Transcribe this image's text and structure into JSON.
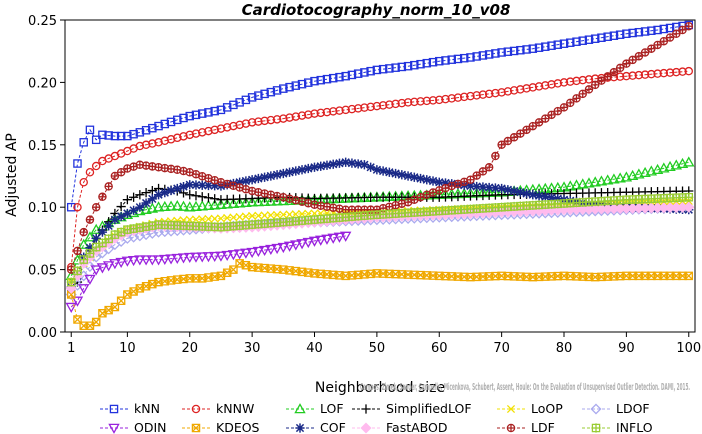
{
  "chart_data": {
    "type": "line",
    "title": "Cardiotocography_norm_10_v08",
    "xlabel": "Neighborhood size",
    "ylabel": "Adjusted AP",
    "xlim": [
      0,
      101
    ],
    "ylim": [
      0,
      0.25
    ],
    "xticks": [
      1,
      10,
      20,
      30,
      40,
      50,
      60,
      70,
      80,
      90,
      100
    ],
    "yticks": [
      0.0,
      0.05,
      0.1,
      0.15,
      0.2,
      0.25
    ],
    "ytick_labels": [
      "0.00",
      "0.05",
      "0.10",
      "0.15",
      "0.20",
      "0.25"
    ],
    "grid": false,
    "legend_position": "bottom",
    "credit": "Campos, Zimek, Sander, Campello, Micenkova, Schubert, Assent, Houle: On the Evaluation of Unsupervised Outlier Detection. DAMI, 2015.",
    "series": [
      {
        "name": "kNN",
        "color": "#2233dd",
        "marker": "square",
        "x": [
          1,
          2,
          3,
          4,
          5,
          6,
          8,
          10,
          12,
          15,
          18,
          20,
          25,
          30,
          35,
          40,
          45,
          50,
          55,
          60,
          65,
          70,
          75,
          80,
          85,
          90,
          95,
          100
        ],
        "y": [
          0.1,
          0.135,
          0.152,
          0.162,
          0.154,
          0.158,
          0.157,
          0.157,
          0.16,
          0.165,
          0.17,
          0.173,
          0.178,
          0.188,
          0.195,
          0.201,
          0.205,
          0.21,
          0.213,
          0.217,
          0.22,
          0.224,
          0.227,
          0.231,
          0.235,
          0.239,
          0.242,
          0.246
        ]
      },
      {
        "name": "kNNW",
        "color": "#dd2222",
        "marker": "circle",
        "x": [
          1,
          2,
          3,
          4,
          5,
          6,
          8,
          10,
          12,
          15,
          20,
          25,
          30,
          35,
          40,
          45,
          50,
          55,
          60,
          65,
          70,
          75,
          80,
          85,
          90,
          95,
          100
        ],
        "y": [
          0.052,
          0.1,
          0.12,
          0.128,
          0.133,
          0.137,
          0.141,
          0.145,
          0.149,
          0.152,
          0.158,
          0.163,
          0.168,
          0.171,
          0.175,
          0.178,
          0.181,
          0.184,
          0.186,
          0.189,
          0.192,
          0.196,
          0.2,
          0.203,
          0.205,
          0.207,
          0.209
        ]
      },
      {
        "name": "LOF",
        "color": "#22cc22",
        "marker": "triangle-up",
        "x": [
          1,
          3,
          5,
          8,
          10,
          12,
          15,
          18,
          20,
          25,
          30,
          40,
          50,
          60,
          70,
          80,
          85,
          90,
          95,
          100
        ],
        "y": [
          0.045,
          0.07,
          0.082,
          0.09,
          0.094,
          0.097,
          0.1,
          0.101,
          0.1,
          0.102,
          0.104,
          0.106,
          0.108,
          0.11,
          0.112,
          0.116,
          0.12,
          0.124,
          0.13,
          0.136
        ]
      },
      {
        "name": "SimplifiedLOF",
        "color": "#000000",
        "marker": "plus",
        "x": [
          1,
          2,
          3,
          5,
          8,
          10,
          12,
          15,
          18,
          20,
          25,
          30,
          35,
          40,
          50,
          60,
          70,
          80,
          90,
          100
        ],
        "y": [
          0.035,
          0.04,
          0.055,
          0.075,
          0.095,
          0.106,
          0.11,
          0.115,
          0.113,
          0.11,
          0.106,
          0.107,
          0.108,
          0.107,
          0.108,
          0.108,
          0.11,
          0.111,
          0.112,
          0.113
        ]
      },
      {
        "name": "LoOP",
        "color": "#f2e000",
        "marker": "x",
        "x": [
          1,
          3,
          5,
          8,
          10,
          15,
          20,
          25,
          30,
          40,
          50,
          60,
          70,
          80,
          90,
          100
        ],
        "y": [
          0.04,
          0.055,
          0.065,
          0.077,
          0.082,
          0.088,
          0.09,
          0.091,
          0.093,
          0.095,
          0.096,
          0.098,
          0.1,
          0.102,
          0.104,
          0.105
        ]
      },
      {
        "name": "LDOF",
        "color": "#aaaaee",
        "marker": "diamond",
        "x": [
          1,
          3,
          5,
          8,
          10,
          15,
          20,
          25,
          30,
          40,
          50,
          60,
          70,
          80,
          90,
          100
        ],
        "y": [
          0.03,
          0.045,
          0.06,
          0.07,
          0.075,
          0.08,
          0.082,
          0.084,
          0.086,
          0.088,
          0.09,
          0.092,
          0.094,
          0.096,
          0.098,
          0.1
        ]
      },
      {
        "name": "ODIN",
        "color": "#9922dd",
        "marker": "triangle-down",
        "x": [
          1,
          2,
          3,
          5,
          8,
          10,
          12,
          15,
          20,
          25,
          30,
          35,
          40,
          45
        ],
        "y": [
          0.02,
          0.025,
          0.035,
          0.05,
          0.055,
          0.057,
          0.058,
          0.058,
          0.06,
          0.061,
          0.064,
          0.068,
          0.073,
          0.077
        ]
      },
      {
        "name": "KDEOS",
        "color": "#f0a800",
        "marker": "square-x",
        "x": [
          1,
          2,
          3,
          4,
          5,
          6,
          8,
          10,
          12,
          15,
          18,
          20,
          22,
          25,
          27,
          28,
          30,
          35,
          40,
          45,
          50,
          55,
          60,
          65,
          70,
          75,
          80,
          85,
          90,
          95,
          100
        ],
        "y": [
          0.03,
          0.01,
          0.005,
          0.005,
          0.008,
          0.015,
          0.02,
          0.03,
          0.035,
          0.04,
          0.042,
          0.043,
          0.043,
          0.045,
          0.05,
          0.055,
          0.052,
          0.05,
          0.047,
          0.045,
          0.047,
          0.046,
          0.045,
          0.044,
          0.045,
          0.044,
          0.045,
          0.044,
          0.045,
          0.045,
          0.045
        ]
      },
      {
        "name": "COF",
        "color": "#1a2a88",
        "marker": "asterisk",
        "x": [
          1,
          2,
          3,
          5,
          8,
          10,
          12,
          15,
          18,
          20,
          25,
          30,
          35,
          40,
          45,
          48,
          50,
          55,
          60,
          65,
          70,
          75,
          80,
          85,
          90,
          95,
          100
        ],
        "y": [
          0.036,
          0.045,
          0.06,
          0.075,
          0.09,
          0.095,
          0.1,
          0.11,
          0.115,
          0.118,
          0.117,
          0.122,
          0.127,
          0.132,
          0.136,
          0.134,
          0.13,
          0.125,
          0.12,
          0.117,
          0.115,
          0.11,
          0.106,
          0.102,
          0.1,
          0.099,
          0.098
        ]
      },
      {
        "name": "FastABOD",
        "color": "#ffbbee",
        "marker": "diamond-filled",
        "x": [
          1,
          3,
          5,
          8,
          10,
          15,
          20,
          25,
          30,
          40,
          50,
          60,
          70,
          80,
          90,
          100
        ],
        "y": [
          0.035,
          0.055,
          0.065,
          0.075,
          0.08,
          0.085,
          0.084,
          0.083,
          0.084,
          0.088,
          0.092,
          0.094,
          0.096,
          0.098,
          0.099,
          0.1
        ]
      },
      {
        "name": "LDF",
        "color": "#aa2222",
        "marker": "circle-plus",
        "x": [
          1,
          2,
          3,
          5,
          8,
          10,
          12,
          15,
          18,
          20,
          25,
          30,
          35,
          40,
          45,
          50,
          55,
          58,
          62,
          65,
          68,
          70,
          75,
          80,
          85,
          90,
          95,
          100
        ],
        "y": [
          0.05,
          0.065,
          0.08,
          0.1,
          0.125,
          0.131,
          0.134,
          0.132,
          0.13,
          0.128,
          0.12,
          0.113,
          0.108,
          0.102,
          0.098,
          0.098,
          0.104,
          0.11,
          0.117,
          0.122,
          0.132,
          0.15,
          0.165,
          0.18,
          0.198,
          0.215,
          0.23,
          0.245
        ]
      },
      {
        "name": "INFLO",
        "color": "#99cc33",
        "marker": "hexstar",
        "x": [
          1,
          3,
          5,
          8,
          10,
          15,
          20,
          25,
          30,
          40,
          50,
          60,
          70,
          80,
          90,
          100
        ],
        "y": [
          0.04,
          0.058,
          0.068,
          0.078,
          0.082,
          0.086,
          0.085,
          0.084,
          0.086,
          0.09,
          0.094,
          0.097,
          0.1,
          0.103,
          0.106,
          0.108
        ]
      }
    ]
  }
}
